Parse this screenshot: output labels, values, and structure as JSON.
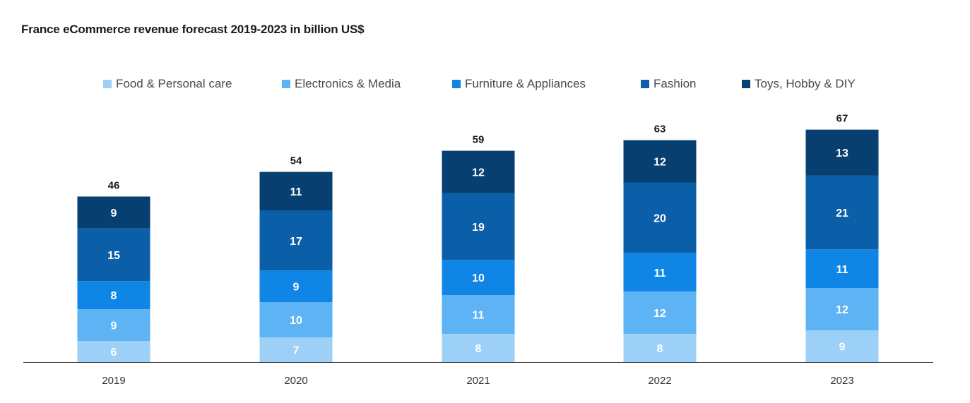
{
  "chart_data": {
    "type": "bar",
    "stacked": true,
    "title": "France eCommerce revenue forecast 2019-2023 in billion US$",
    "xlabel": "",
    "ylabel": "",
    "categories": [
      "2019",
      "2020",
      "2021",
      "2022",
      "2023"
    ],
    "totals": [
      "46",
      "54",
      "59",
      "63",
      "67"
    ],
    "series": [
      {
        "name": "Food & Personal care",
        "color": "#9dd0f7",
        "values": [
          6,
          7,
          8,
          8,
          9
        ]
      },
      {
        "name": "Electronics & Media",
        "color": "#5db3f4",
        "values": [
          9,
          10,
          11,
          12,
          12
        ]
      },
      {
        "name": "Furniture & Appliances",
        "color": "#0f86e6",
        "values": [
          8,
          9,
          10,
          11,
          11
        ]
      },
      {
        "name": "Fashion",
        "color": "#0b5ea8",
        "values": [
          15,
          17,
          19,
          20,
          21
        ]
      },
      {
        "name": "Toys, Hobby & DIY",
        "color": "#063f70",
        "values": [
          9,
          11,
          12,
          12,
          13
        ]
      }
    ],
    "grid": false,
    "legend_position": "top"
  }
}
